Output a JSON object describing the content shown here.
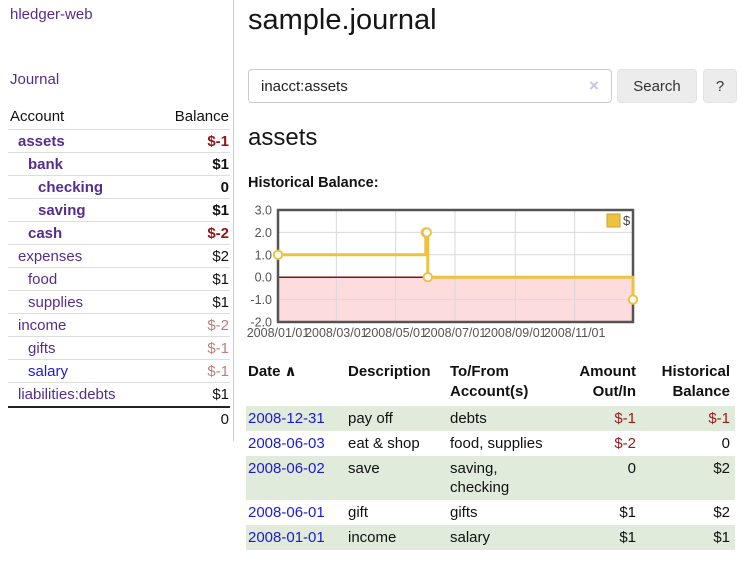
{
  "app": {
    "brand": "hledger-web"
  },
  "sidebar": {
    "nav_journal": "Journal",
    "accounts_table": {
      "headers": {
        "account": "Account",
        "balance": "Balance"
      },
      "rows": [
        {
          "label": "assets",
          "balance": "$-1",
          "depth": 0,
          "bold": true,
          "link": "purple",
          "balance_class": "neg-strong"
        },
        {
          "label": "bank",
          "balance": "$1",
          "depth": 1,
          "bold": true,
          "link": "purple",
          "balance_class": ""
        },
        {
          "label": "checking",
          "balance": "0",
          "depth": 2,
          "bold": true,
          "link": "purple",
          "balance_class": ""
        },
        {
          "label": "saving",
          "balance": "$1",
          "depth": 2,
          "bold": true,
          "link": "purple",
          "balance_class": ""
        },
        {
          "label": "cash",
          "balance": "$-2",
          "depth": 1,
          "bold": true,
          "link": "purple",
          "balance_class": "neg-strong"
        },
        {
          "label": "expenses",
          "balance": "$2",
          "depth": 0,
          "bold": false,
          "link": "purple",
          "balance_class": ""
        },
        {
          "label": "food",
          "balance": "$1",
          "depth": 1,
          "bold": false,
          "link": "purple",
          "balance_class": ""
        },
        {
          "label": "supplies",
          "balance": "$1",
          "depth": 1,
          "bold": false,
          "link": "purple",
          "balance_class": ""
        },
        {
          "label": "income",
          "balance": "$-2",
          "depth": 0,
          "bold": false,
          "link": "purple",
          "balance_class": "neg-muted"
        },
        {
          "label": "gifts",
          "balance": "$-1",
          "depth": 1,
          "bold": false,
          "link": "purple",
          "balance_class": "neg-muted"
        },
        {
          "label": "salary",
          "balance": "$-1",
          "depth": 1,
          "bold": false,
          "link": "blue",
          "balance_class": "neg-muted"
        },
        {
          "label": "liabilities:debts",
          "balance": "$1",
          "depth": 0,
          "bold": false,
          "link": "purple",
          "balance_class": ""
        }
      ],
      "total": "0"
    }
  },
  "main": {
    "title": "sample.journal",
    "search": {
      "value": "inacct:assets",
      "clear_icon": "×",
      "button_label": "Search",
      "help_label": "?"
    },
    "account_heading": "assets",
    "chart_label": "Historical Balance:"
  },
  "chart_data": {
    "type": "line",
    "title": "Historical Balance:",
    "series": [
      {
        "name": "$",
        "color": "#edc240",
        "step": true,
        "points": [
          [
            "2008-01-01",
            1
          ],
          [
            "2008-06-01",
            2
          ],
          [
            "2008-06-02",
            2
          ],
          [
            "2008-06-03",
            0
          ],
          [
            "2008-12-31",
            -1
          ]
        ]
      }
    ],
    "xrange": [
      "2008-01-01",
      "2008-12-31"
    ],
    "ylim": [
      -2,
      3
    ],
    "yticks": [
      3,
      2,
      1,
      0,
      -1,
      -2
    ],
    "xticks": [
      "2008/01/01",
      "2008/03/01",
      "2008/05/01",
      "2008/07/01",
      "2008/09/01",
      "2008/11/01"
    ],
    "grid": true,
    "legend_position": "top-right",
    "negative_region_color": "#fcdcdc",
    "zero_line_color": "#871111",
    "axis_text_color": "#545454",
    "border_color": "#545454"
  },
  "register": {
    "headers": {
      "date": "Date",
      "sort_icon": "∧",
      "description": "Description",
      "accounts": "To/From Account(s)",
      "amount": "Amount Out/In",
      "balance": "Historical Balance"
    },
    "rows": [
      {
        "date": "2008-12-31",
        "description": "pay off",
        "accounts": "debts",
        "amount": "$-1",
        "amount_neg": true,
        "balance": "$-1",
        "balance_neg": true,
        "highlight": true
      },
      {
        "date": "2008-06-03",
        "description": "eat & shop",
        "accounts": "food, supplies",
        "amount": "$-2",
        "amount_neg": true,
        "balance": "0",
        "balance_neg": false,
        "highlight": false
      },
      {
        "date": "2008-06-02",
        "description": "save",
        "accounts": "saving, checking",
        "amount": "0",
        "amount_neg": false,
        "balance": "$2",
        "balance_neg": false,
        "highlight": true
      },
      {
        "date": "2008-06-01",
        "description": "gift",
        "accounts": "gifts",
        "amount": "$1",
        "amount_neg": false,
        "balance": "$2",
        "balance_neg": false,
        "highlight": false
      },
      {
        "date": "2008-01-01",
        "description": "income",
        "accounts": "salary",
        "amount": "$1",
        "amount_neg": false,
        "balance": "$1",
        "balance_neg": false,
        "highlight": true
      }
    ]
  }
}
